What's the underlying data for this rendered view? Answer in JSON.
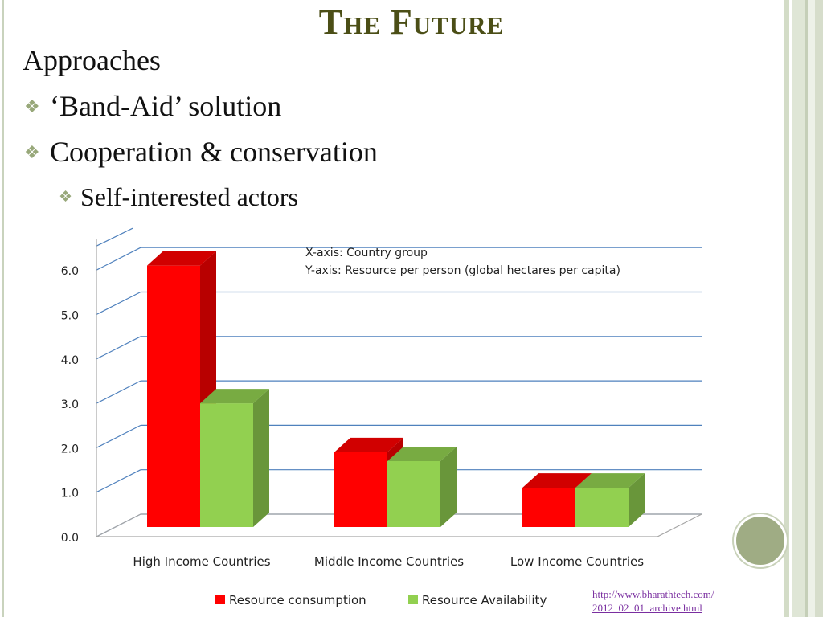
{
  "slide": {
    "title": "The Future",
    "heading": "Approaches",
    "bullets": [
      "‘Band-Aid’ solution",
      "Cooperation & conservation"
    ],
    "sub_bullets": [
      "Self-interested actors"
    ],
    "source_link": [
      "http://www.bharathtech.com/",
      "2012_02_01_archive.html"
    ],
    "bullet_icon": "diamond-bullet-icon",
    "colors": {
      "title": "#4b4e16",
      "bullet": "#98a87a",
      "link": "#7a2fa0",
      "frame": "#c9d3bd",
      "circle": "#9fac84"
    }
  },
  "chart_data": {
    "type": "bar",
    "style": "3d-clustered",
    "categories": [
      "High Income Countries",
      "Middle Income Countries",
      "Low Income Countries"
    ],
    "series": [
      {
        "name": "Resource consumption",
        "values": [
          6.1,
          1.9,
          1.1
        ],
        "color": "#ff0000"
      },
      {
        "name": "Resource Availability",
        "values": [
          3.0,
          1.7,
          1.1
        ],
        "color": "#92d050"
      }
    ],
    "annotations": [
      "X-axis: Country group",
      "Y-axis: Resource per person (global hectares per capita)"
    ],
    "yticks": [
      "0.0",
      "1.0",
      "2.0",
      "3.0",
      "4.0",
      "5.0",
      "6.0"
    ],
    "ylim": [
      0,
      6
    ],
    "grid": true,
    "legend": "bottom",
    "colors": {
      "grid": "#4f81bd",
      "axis": "#a6a6a6"
    }
  }
}
